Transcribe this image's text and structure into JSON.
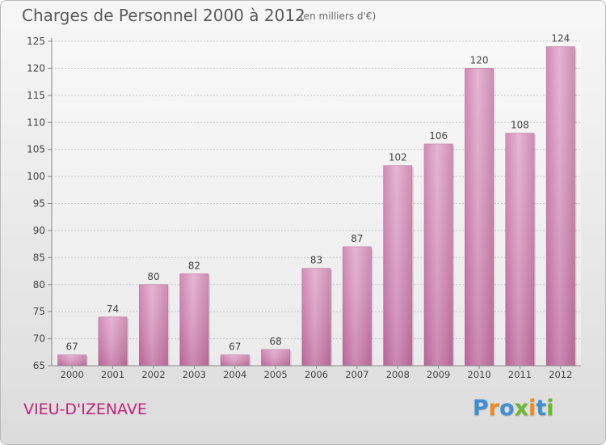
{
  "chart_data": {
    "type": "bar",
    "title": "Charges de Personnel 2000 à 2012",
    "subtitle": "(en milliers d'€)",
    "categories": [
      "2000",
      "2001",
      "2002",
      "2003",
      "2004",
      "2005",
      "2006",
      "2007",
      "2008",
      "2009",
      "2010",
      "2011",
      "2012"
    ],
    "values": [
      67,
      74,
      80,
      82,
      67,
      68,
      83,
      87,
      102,
      106,
      120,
      108,
      124
    ],
    "ylim": [
      65,
      125
    ],
    "yticks": [
      65,
      70,
      75,
      80,
      85,
      90,
      95,
      100,
      105,
      110,
      115,
      120,
      125
    ],
    "grid": true,
    "bar_color": "#d48fb8"
  },
  "commune": "VIEU-D'IZENAVE",
  "logo": {
    "letters": [
      "P",
      "r",
      "o",
      "x",
      "i",
      "t",
      "i"
    ],
    "colors": [
      "#3e8fd6",
      "#f08a1c",
      "#3e8fd6",
      "#6cb82e",
      "#f08a1c",
      "#3e8fd6",
      "#6cb82e"
    ]
  }
}
